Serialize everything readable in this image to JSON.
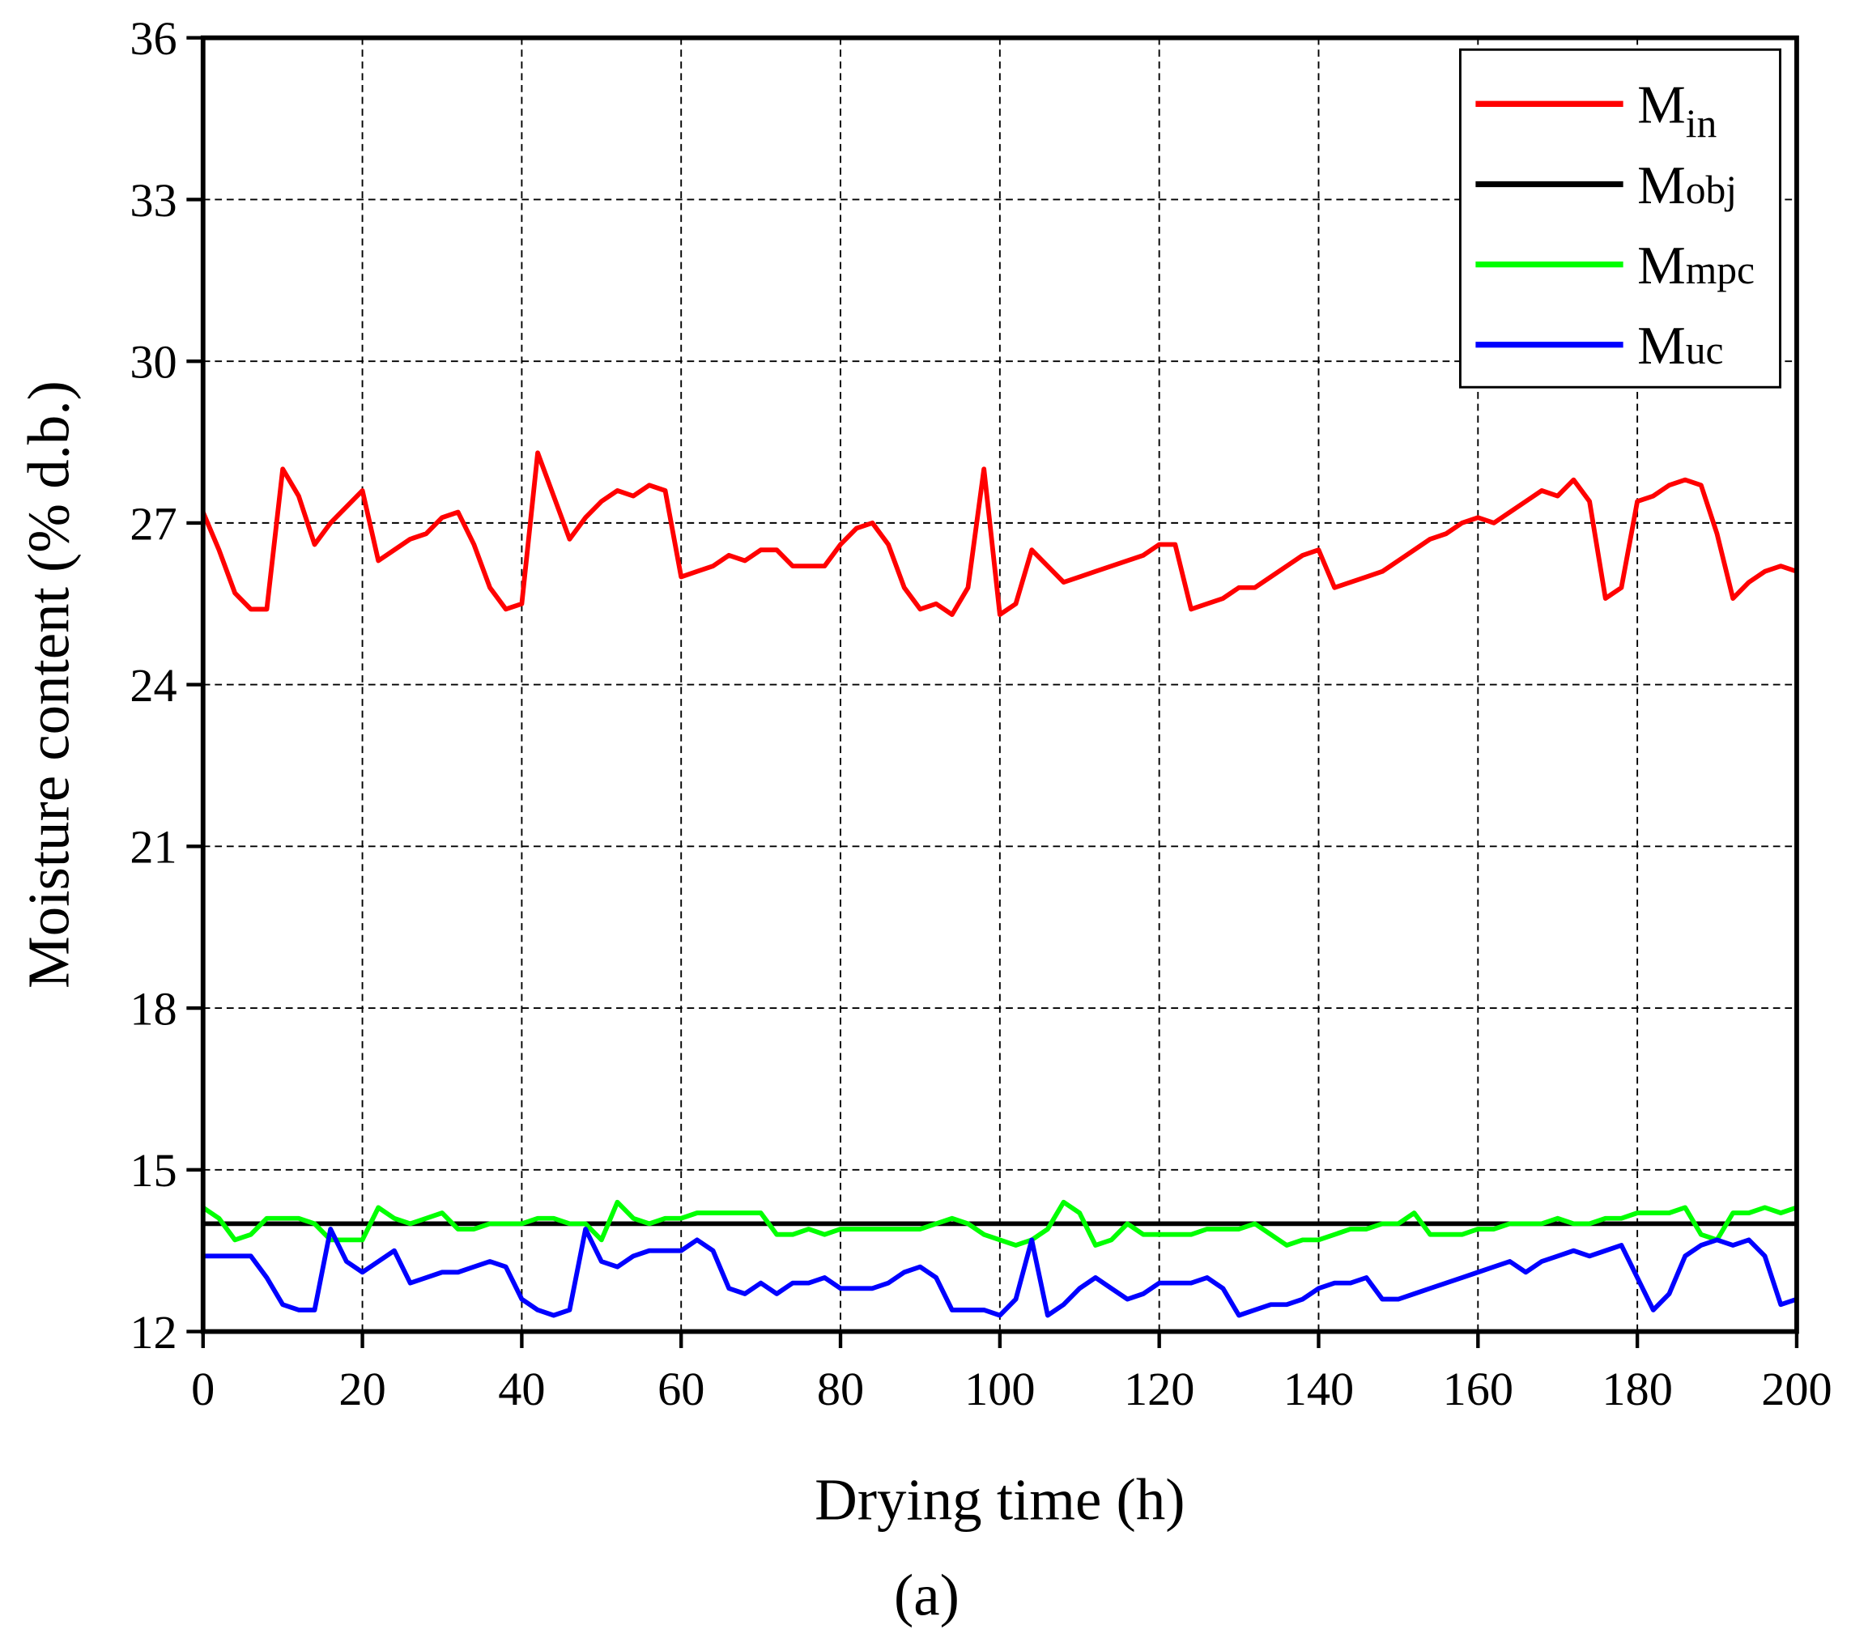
{
  "chart_data": {
    "type": "line",
    "xlabel": "Drying time (h)",
    "ylabel": "Moisture content (% d.b.)",
    "annotation": "(a)",
    "xlim": [
      0,
      200
    ],
    "xticks": [
      0,
      20,
      40,
      60,
      80,
      100,
      120,
      140,
      160,
      180,
      200
    ],
    "ylim": [
      12,
      36
    ],
    "yticks": [
      12,
      15,
      18,
      21,
      24,
      27,
      30,
      33,
      36
    ],
    "grid": true,
    "legend": "upper right",
    "x": [
      0,
      2,
      4,
      6,
      8,
      10,
      12,
      14,
      16,
      18,
      20,
      22,
      24,
      26,
      28,
      30,
      32,
      34,
      36,
      38,
      40,
      42,
      44,
      46,
      48,
      50,
      52,
      54,
      56,
      58,
      60,
      62,
      64,
      66,
      68,
      70,
      72,
      74,
      76,
      78,
      80,
      82,
      84,
      86,
      88,
      90,
      92,
      94,
      96,
      98,
      100,
      102,
      104,
      106,
      108,
      110,
      112,
      114,
      116,
      118,
      120,
      122,
      124,
      126,
      128,
      130,
      132,
      134,
      136,
      138,
      140,
      142,
      144,
      146,
      148,
      150,
      152,
      154,
      156,
      158,
      160,
      162,
      164,
      166,
      168,
      170,
      172,
      174,
      176,
      178,
      180,
      182,
      184,
      186,
      188,
      190,
      192,
      194,
      196,
      198,
      200
    ],
    "series": [
      {
        "name": "Min",
        "color": "#ff0000",
        "values": [
          27.2,
          26.5,
          25.7,
          25.4,
          25.4,
          28.0,
          27.5,
          26.6,
          27.0,
          27.3,
          27.6,
          26.3,
          26.5,
          26.7,
          26.8,
          27.1,
          27.2,
          26.6,
          25.8,
          25.4,
          25.5,
          28.3,
          27.5,
          26.7,
          27.1,
          27.4,
          27.6,
          27.5,
          27.7,
          27.6,
          26.0,
          26.1,
          26.2,
          26.4,
          26.3,
          26.5,
          26.5,
          26.2,
          26.2,
          26.2,
          26.6,
          26.9,
          27.0,
          26.6,
          25.8,
          25.4,
          25.5,
          25.3,
          25.8,
          28.0,
          25.3,
          25.5,
          26.5,
          26.2,
          25.9,
          26.0,
          26.1,
          26.2,
          26.3,
          26.4,
          26.6,
          26.6,
          25.4,
          25.5,
          25.6,
          25.8,
          25.8,
          26.0,
          26.2,
          26.4,
          26.5,
          25.8,
          25.9,
          26.0,
          26.1,
          26.3,
          26.5,
          26.7,
          26.8,
          27.0,
          27.1,
          27.0,
          27.2,
          27.4,
          27.6,
          27.5,
          27.8,
          27.4,
          25.6,
          25.8,
          27.4,
          27.5,
          27.7,
          27.8,
          27.7,
          26.8,
          25.6,
          25.9,
          26.1,
          26.2,
          26.1
        ]
      },
      {
        "name": "Mobj",
        "color": "#000000",
        "x": [
          0,
          200
        ],
        "values": [
          14,
          14
        ]
      },
      {
        "name": "Mmpc",
        "color": "#00ff00",
        "values": [
          14.3,
          14.1,
          13.7,
          13.8,
          14.1,
          14.1,
          14.1,
          14.0,
          13.7,
          13.7,
          13.7,
          14.3,
          14.1,
          14.0,
          14.1,
          14.2,
          13.9,
          13.9,
          14.0,
          14.0,
          14.0,
          14.1,
          14.1,
          14.0,
          14.0,
          13.7,
          14.4,
          14.1,
          14.0,
          14.1,
          14.1,
          14.2,
          14.2,
          14.2,
          14.2,
          14.2,
          13.8,
          13.8,
          13.9,
          13.8,
          13.9,
          13.9,
          13.9,
          13.9,
          13.9,
          13.9,
          14.0,
          14.1,
          14.0,
          13.8,
          13.7,
          13.6,
          13.7,
          13.9,
          14.4,
          14.2,
          13.6,
          13.7,
          14.0,
          13.8,
          13.8,
          13.8,
          13.8,
          13.9,
          13.9,
          13.9,
          14.0,
          13.8,
          13.6,
          13.7,
          13.7,
          13.8,
          13.9,
          13.9,
          14.0,
          14.0,
          14.2,
          13.8,
          13.8,
          13.8,
          13.9,
          13.9,
          14.0,
          14.0,
          14.0,
          14.1,
          14.0,
          14.0,
          14.1,
          14.1,
          14.2,
          14.2,
          14.2,
          14.3,
          13.8,
          13.7,
          14.2,
          14.2,
          14.3,
          14.2,
          14.3
        ]
      },
      {
        "name": "Muc",
        "color": "#0000ff",
        "values": [
          13.4,
          13.4,
          13.4,
          13.4,
          13.0,
          12.5,
          12.4,
          12.4,
          13.9,
          13.3,
          13.1,
          13.3,
          13.5,
          12.9,
          13.0,
          13.1,
          13.1,
          13.2,
          13.3,
          13.2,
          12.6,
          12.4,
          12.3,
          12.4,
          13.9,
          13.3,
          13.2,
          13.4,
          13.5,
          13.5,
          13.5,
          13.7,
          13.5,
          12.8,
          12.7,
          12.9,
          12.7,
          12.9,
          12.9,
          13.0,
          12.8,
          12.8,
          12.8,
          12.9,
          13.1,
          13.2,
          13.0,
          12.4,
          12.4,
          12.4,
          12.3,
          12.6,
          13.7,
          12.3,
          12.5,
          12.8,
          13.0,
          12.8,
          12.6,
          12.7,
          12.9,
          12.9,
          12.9,
          13.0,
          12.8,
          12.3,
          12.4,
          12.5,
          12.5,
          12.6,
          12.8,
          12.9,
          12.9,
          13.0,
          12.6,
          12.6,
          12.7,
          12.8,
          12.9,
          13.0,
          13.1,
          13.2,
          13.3,
          13.1,
          13.3,
          13.4,
          13.5,
          13.4,
          13.5,
          13.6,
          13.0,
          12.4,
          12.7,
          13.4,
          13.6,
          13.7,
          13.6,
          13.7,
          13.4,
          12.5,
          12.6
        ]
      }
    ]
  }
}
